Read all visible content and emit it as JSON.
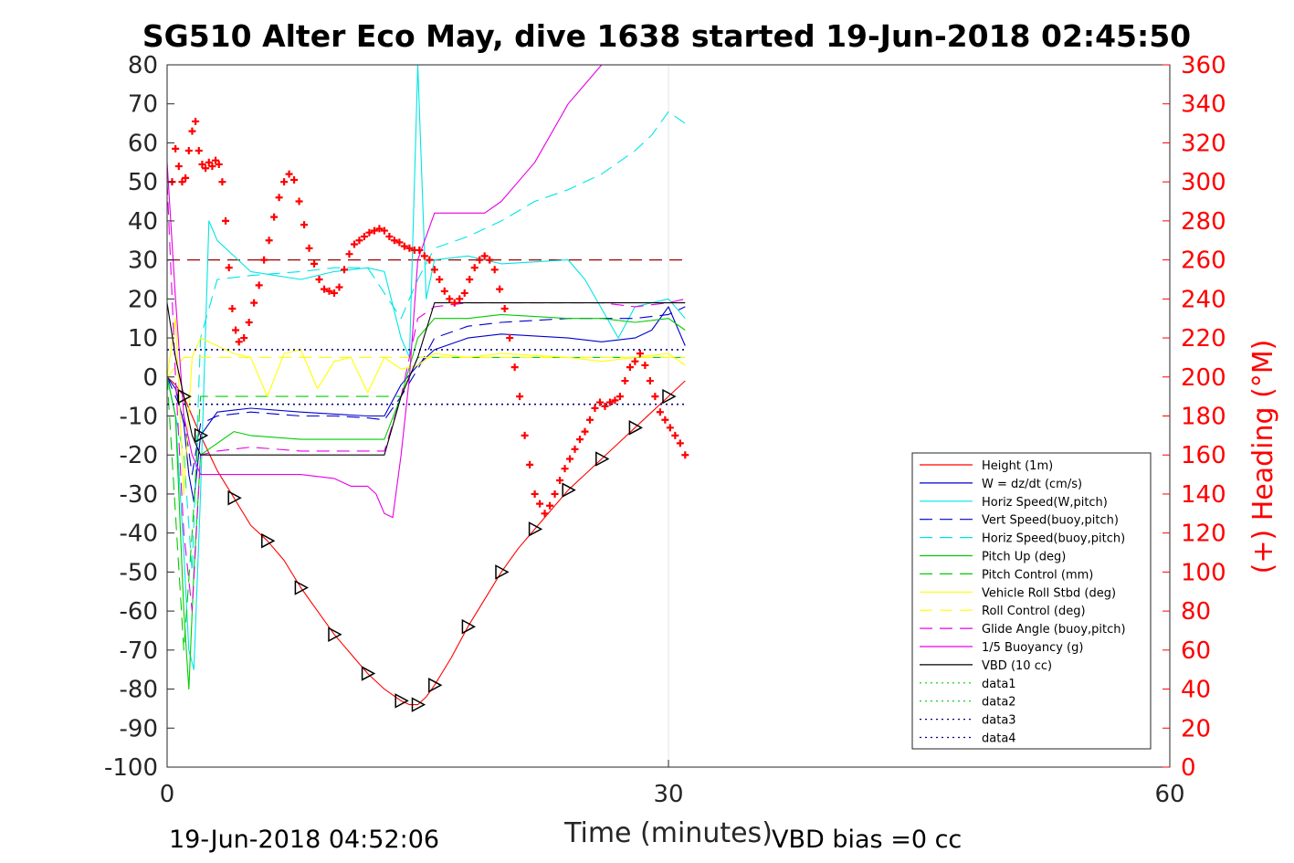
{
  "chart_data": {
    "type": "line",
    "title": "SG510 Alter Eco May, dive 1638 started 19-Jun-2018 02:45:50",
    "xlabel": "Time (minutes)",
    "ylabel": "",
    "y2label": "(+) Heading (°M)",
    "xlim": [
      0,
      60
    ],
    "ylim": [
      -100,
      80
    ],
    "y2lim": [
      0,
      360
    ],
    "xticks": [
      "0",
      "30",
      "60"
    ],
    "yticks": [
      "80",
      "70",
      "60",
      "50",
      "40",
      "30",
      "20",
      "10",
      "0",
      "-10",
      "-20",
      "-30",
      "-40",
      "-50",
      "-60",
      "-70",
      "-80",
      "-90",
      "-100"
    ],
    "y2ticks": [
      "360",
      "340",
      "320",
      "300",
      "280",
      "260",
      "240",
      "220",
      "200",
      "180",
      "160",
      "140",
      "120",
      "100",
      "80",
      "60",
      "40",
      "20",
      "0"
    ],
    "footer_left": "19-Jun-2018 04:52:06",
    "footer_right": "VBD bias =0 cc",
    "legend_position": "bottom-right",
    "colors": {
      "heading": "#ff0000",
      "axis_right": "#ff0000",
      "grid": "#e6e6e6"
    },
    "series": [
      {
        "name": "Height (1m)",
        "color": "#ff0000",
        "style": "solid",
        "x": [
          0,
          0.5,
          1,
          1.5,
          2,
          3,
          4,
          5,
          6,
          7,
          8,
          9,
          10,
          11,
          12,
          13,
          14,
          14.5,
          15,
          15.5,
          16,
          17,
          18,
          19,
          20,
          21,
          22,
          23,
          24,
          25,
          26,
          27,
          28,
          29,
          30,
          31
        ],
        "y": [
          0,
          -2,
          -5,
          -10,
          -15,
          -24,
          -31,
          -38,
          -42,
          -47,
          -54,
          -60,
          -66,
          -71,
          -76,
          -80,
          -83,
          -84,
          -84,
          -82,
          -79,
          -72,
          -64,
          -57,
          -50,
          -44,
          -39,
          -34,
          -29,
          -25,
          -21,
          -17,
          -13,
          -9,
          -5,
          -1
        ]
      },
      {
        "name": "W = dz/dt (cm/s)",
        "color": "#0000cc",
        "style": "solid",
        "x": [
          0,
          0.5,
          1,
          1.3,
          1.6,
          2,
          3,
          5,
          8,
          10,
          12,
          13,
          14,
          15,
          16,
          18,
          20,
          24,
          26,
          28,
          29,
          30,
          31
        ],
        "y": [
          0,
          -3,
          -12,
          -25,
          -32,
          -15,
          -9,
          -8,
          -9,
          -9.5,
          -10,
          -10,
          -2,
          3,
          7,
          10,
          11,
          10,
          9,
          10,
          12,
          18,
          8
        ]
      },
      {
        "name": "Horiz Speed(W,pitch)",
        "color": "#00e5e5",
        "style": "solid",
        "x": [
          0,
          0.5,
          1,
          1.3,
          1.6,
          2,
          2.5,
          3,
          5,
          8,
          10,
          12,
          13,
          14,
          14.5,
          15,
          15.5,
          16,
          18,
          20,
          24,
          25,
          27,
          28,
          30,
          31
        ],
        "y": [
          0,
          -10,
          -45,
          -70,
          -75,
          -30,
          40,
          35,
          27,
          25,
          27,
          28,
          27,
          10,
          5,
          80,
          20,
          30,
          31,
          29,
          30,
          25,
          10,
          18,
          20,
          15
        ]
      },
      {
        "name": "Vert Speed(buoy,pitch)",
        "color": "#0000cc",
        "style": "dashed",
        "x": [
          0,
          1,
          1.5,
          2,
          3,
          5,
          8,
          10,
          12,
          13,
          14,
          15,
          16,
          18,
          20,
          24,
          26,
          28,
          30,
          31
        ],
        "y": [
          0,
          -10,
          -25,
          -12,
          -10,
          -9,
          -10,
          -10,
          -10.5,
          -11,
          -5,
          2,
          10,
          13,
          14,
          15,
          15,
          15,
          16,
          18
        ]
      },
      {
        "name": "Horiz Speed(buoy,pitch)",
        "color": "#00e5e5",
        "style": "dashed",
        "x": [
          0,
          1,
          1.5,
          2,
          3,
          5,
          8,
          10,
          12,
          14,
          15,
          16,
          18,
          20,
          22,
          24,
          26,
          28,
          29,
          30,
          31
        ],
        "y": [
          0,
          -20,
          -50,
          10,
          25,
          26,
          27,
          28,
          28,
          15,
          25,
          33,
          36,
          40,
          45,
          48,
          52,
          58,
          62,
          68,
          65
        ]
      },
      {
        "name": "Pitch Up (deg)",
        "color": "#00cc00",
        "style": "solid",
        "x": [
          0,
          0.5,
          1,
          1.3,
          1.6,
          2,
          3,
          4,
          5,
          8,
          10,
          12,
          13,
          14,
          15,
          16,
          18,
          20,
          24,
          26,
          28,
          30,
          31
        ],
        "y": [
          0,
          -10,
          -60,
          -80,
          -50,
          -20,
          -17,
          -14,
          -15,
          -16,
          -16,
          -16,
          -16,
          -5,
          10,
          15,
          15,
          16,
          15,
          15,
          14,
          15,
          12
        ]
      },
      {
        "name": "Pitch Control (mm)",
        "color": "#00cc00",
        "style": "dashed",
        "x": [
          0,
          1,
          1.5,
          2,
          3,
          13,
          14,
          15,
          16,
          31
        ],
        "y": [
          0,
          -70,
          -40,
          -5,
          -5,
          -5,
          -5,
          5,
          5,
          5
        ]
      },
      {
        "name": "Vehicle Roll Stbd (deg)",
        "color": "#ffff00",
        "style": "solid",
        "x": [
          0,
          0.5,
          1,
          1.5,
          2,
          3,
          4,
          5,
          6,
          7,
          8,
          9,
          10,
          11,
          12,
          13,
          14,
          15,
          16,
          18,
          20,
          24,
          26,
          28,
          30,
          31
        ],
        "y": [
          0,
          15,
          -30,
          5,
          10,
          8,
          6,
          5,
          -5,
          6,
          7,
          -3,
          4,
          5,
          -4,
          5,
          2,
          3,
          6,
          5,
          6,
          5,
          4,
          5,
          6,
          3
        ]
      },
      {
        "name": "Roll Control (deg)",
        "color": "#ffff00",
        "style": "dashed",
        "x": [
          0,
          1,
          2,
          31
        ],
        "y": [
          0,
          5,
          5,
          5
        ]
      },
      {
        "name": "Glide Angle (buoy,pitch)",
        "color": "#e600e6",
        "style": "dashed",
        "x": [
          0,
          0.5,
          1,
          1.5,
          2,
          3,
          5,
          8,
          10,
          12,
          13,
          14,
          15,
          16,
          18,
          20,
          24,
          26,
          28,
          30,
          31
        ],
        "y": [
          50,
          0,
          -40,
          -60,
          -20,
          -19,
          -18,
          -19,
          -19,
          -19,
          -19,
          -5,
          15,
          18,
          19,
          19,
          19,
          19,
          18,
          19,
          20
        ]
      },
      {
        "name": "1/5 Buoyancy (g)",
        "color": "#e600e6",
        "style": "solid",
        "x": [
          0,
          0.5,
          1,
          1.5,
          2,
          3,
          5,
          8,
          10,
          11,
          12,
          12.5,
          13,
          13.5,
          14,
          14.5,
          15,
          16,
          18,
          19,
          20,
          22,
          24,
          26
        ],
        "y": [
          55,
          20,
          -10,
          -20,
          -25,
          -25,
          -25,
          -25,
          -26,
          -28,
          -28,
          -30,
          -35,
          -36,
          -20,
          0,
          30,
          42,
          42,
          42,
          45,
          55,
          70,
          80
        ]
      },
      {
        "name": "VBD (10 cc)",
        "color": "#000000",
        "style": "solid",
        "x": [
          0,
          0.5,
          1,
          1.5,
          2,
          13,
          14,
          15,
          16,
          31
        ],
        "y": [
          19,
          5,
          -5,
          -15,
          -20,
          -20,
          -5,
          5,
          19,
          19
        ]
      },
      {
        "name": "data1",
        "color": "#00cc00",
        "style": "dotted",
        "x": [],
        "y": []
      },
      {
        "name": "data2",
        "color": "#00cc00",
        "style": "dotted",
        "x": [],
        "y": []
      },
      {
        "name": "data3",
        "color": "#000080",
        "style": "dotted",
        "x": [
          0,
          31
        ],
        "y": [
          7,
          7
        ]
      },
      {
        "name": "data4",
        "color": "#000080",
        "style": "dotted",
        "x": [
          0,
          31
        ],
        "y": [
          -7,
          -7
        ]
      }
    ],
    "reference_line": {
      "color": "#990000",
      "style": "dashed",
      "y": 30,
      "x": [
        0,
        31
      ]
    },
    "heading_points": {
      "color": "#ff0000",
      "marker": "+",
      "axis": "right",
      "x": [
        0.3,
        0.5,
        0.7,
        0.9,
        1.1,
        1.3,
        1.5,
        1.7,
        1.9,
        2.1,
        2.3,
        2.5,
        2.7,
        2.9,
        3.1,
        3.3,
        3.5,
        3.7,
        3.9,
        4.1,
        4.3,
        4.6,
        4.9,
        5.2,
        5.5,
        5.8,
        6.1,
        6.4,
        6.7,
        7.0,
        7.3,
        7.6,
        7.9,
        8.2,
        8.5,
        8.8,
        9.1,
        9.4,
        9.7,
        10.0,
        10.3,
        10.6,
        10.9,
        11.2,
        11.5,
        11.8,
        12.1,
        12.4,
        12.7,
        13.0,
        13.3,
        13.6,
        13.9,
        14.2,
        14.5,
        14.8,
        15.1,
        15.4,
        15.7,
        16.0,
        16.3,
        16.6,
        16.9,
        17.2,
        17.5,
        17.8,
        18.1,
        18.4,
        18.7,
        19.0,
        19.3,
        19.6,
        19.9,
        20.2,
        20.5,
        20.8,
        21.1,
        21.4,
        21.7,
        22.0,
        22.3,
        22.6,
        22.9,
        23.2,
        23.5,
        23.8,
        24.1,
        24.4,
        24.7,
        25.0,
        25.3,
        25.6,
        25.9,
        26.2,
        26.5,
        26.8,
        27.1,
        27.4,
        27.7,
        28.0,
        28.3,
        28.6,
        28.9,
        29.2,
        29.5,
        29.8,
        30.1,
        30.4,
        30.7,
        31.0
      ],
      "y": [
        300,
        317,
        308,
        300,
        302,
        316,
        326,
        331,
        316,
        309,
        307,
        310,
        308,
        311,
        309,
        300,
        280,
        256,
        235,
        224,
        218,
        220,
        228,
        238,
        247,
        260,
        270,
        282,
        292,
        300,
        304,
        301,
        290,
        278,
        266,
        258,
        250,
        245,
        244,
        243,
        246,
        255,
        263,
        268,
        270,
        272,
        274,
        275,
        276,
        275,
        272,
        270,
        269,
        267,
        266,
        265,
        265,
        262,
        260,
        255,
        250,
        244,
        240,
        238,
        240,
        243,
        250,
        256,
        260,
        262,
        260,
        255,
        245,
        235,
        220,
        205,
        190,
        170,
        155,
        140,
        135,
        130,
        134,
        140,
        147,
        153,
        158,
        163,
        168,
        172,
        178,
        184,
        187,
        185,
        187,
        188,
        190,
        198,
        205,
        208,
        212,
        206,
        198,
        190,
        182,
        178,
        174,
        170,
        166,
        160
      ]
    }
  }
}
